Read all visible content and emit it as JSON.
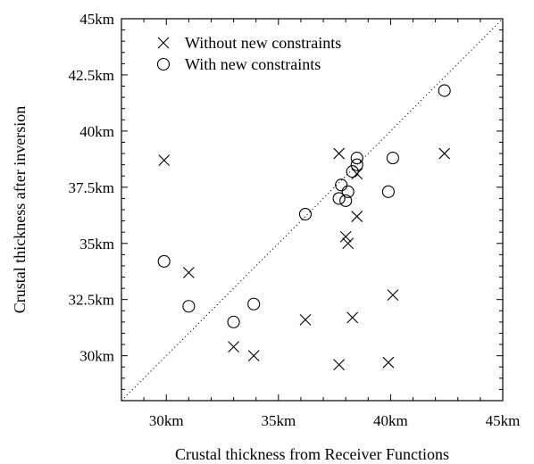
{
  "chart_data": {
    "type": "scatter",
    "title": "",
    "xlabel": "Crustal thickness from Receiver Functions",
    "ylabel": "Crustal thickness after inversion",
    "xlim": [
      28,
      45
    ],
    "ylim": [
      28,
      45
    ],
    "x_ticks": [
      30,
      35,
      40,
      45
    ],
    "y_ticks": [
      30,
      32.5,
      35,
      37.5,
      40,
      42.5,
      45
    ],
    "x_tick_labels": [
      "30km",
      "35km",
      "40km",
      "45km"
    ],
    "y_tick_labels": [
      "30km",
      "32.5km",
      "35km",
      "37.5km",
      "40km",
      "42.5km",
      "45km"
    ],
    "unit_suffix": "km",
    "grid": false,
    "legend_position": "top-left",
    "reference_line": {
      "type": "identity",
      "style": "dotted"
    },
    "series": [
      {
        "name": "Without new constraints",
        "marker": "cross",
        "points": [
          [
            29.9,
            38.7
          ],
          [
            31.0,
            33.7
          ],
          [
            33.0,
            30.4
          ],
          [
            33.9,
            30.0
          ],
          [
            36.2,
            31.6
          ],
          [
            37.7,
            29.6
          ],
          [
            37.7,
            39.0
          ],
          [
            38.0,
            35.3
          ],
          [
            38.1,
            35.0
          ],
          [
            38.3,
            31.7
          ],
          [
            38.5,
            38.1
          ],
          [
            38.5,
            36.2
          ],
          [
            39.9,
            29.7
          ],
          [
            40.1,
            32.7
          ],
          [
            42.4,
            39.0
          ]
        ]
      },
      {
        "name": "With new constraints",
        "marker": "circle",
        "points": [
          [
            29.9,
            34.2
          ],
          [
            31.0,
            32.2
          ],
          [
            33.0,
            31.5
          ],
          [
            33.9,
            32.3
          ],
          [
            36.2,
            36.3
          ],
          [
            37.7,
            37.0
          ],
          [
            37.8,
            37.6
          ],
          [
            38.0,
            36.9
          ],
          [
            38.1,
            37.3
          ],
          [
            38.3,
            38.2
          ],
          [
            38.5,
            38.8
          ],
          [
            38.5,
            38.5
          ],
          [
            39.9,
            37.3
          ],
          [
            40.1,
            38.8
          ],
          [
            42.4,
            41.8
          ]
        ]
      }
    ]
  }
}
